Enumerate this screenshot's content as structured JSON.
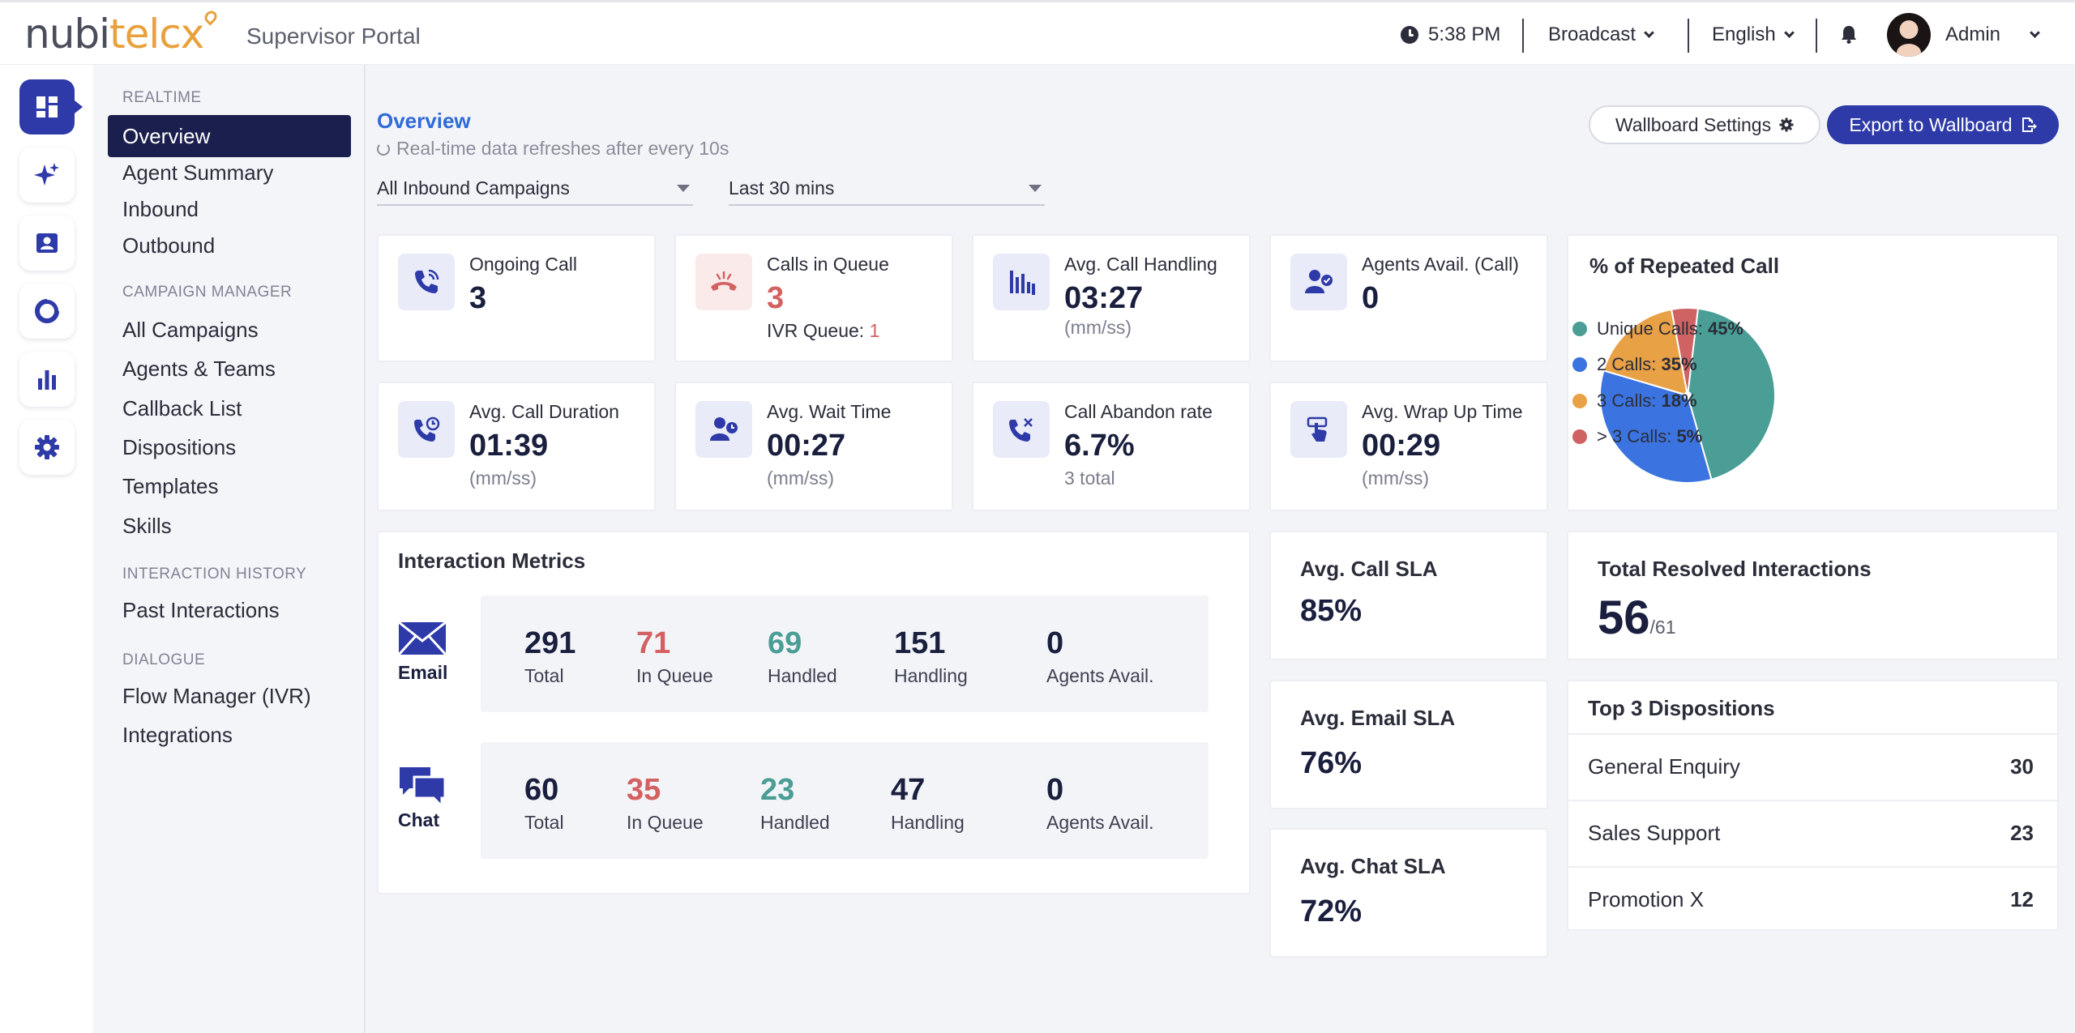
{
  "header": {
    "logo_text": "nubitelcx",
    "portal_title": "Supervisor Portal",
    "time": "5:38 PM",
    "broadcast_label": "Broadcast",
    "language_label": "English",
    "user_name": "Admin"
  },
  "nav": {
    "sections": [
      {
        "title": "REALTIME",
        "items": [
          "Overview",
          "Agent Summary",
          "Inbound",
          "Outbound"
        ]
      },
      {
        "title": "CAMPAIGN MANAGER",
        "items": [
          "All Campaigns",
          "Agents & Teams",
          "Callback List",
          "Dispositions",
          "Templates",
          "Skills"
        ]
      },
      {
        "title": "INTERACTION HISTORY",
        "items": [
          "Past Interactions"
        ]
      },
      {
        "title": "DIALOGUE",
        "items": [
          "Flow Manager (IVR)",
          "Integrations"
        ]
      }
    ],
    "active_item": "Overview"
  },
  "rail": [
    "dashboard-icon",
    "sparkle-icon",
    "contact-card-icon",
    "donut-icon",
    "bar-chart-icon",
    "gear-icon"
  ],
  "page": {
    "title": "Overview",
    "refresh_note": "Real-time data refreshes after every 10s",
    "campaign_filter": "All Inbound Campaigns",
    "time_filter": "Last 30 mins",
    "wallboard_settings_label": "Wallboard Settings",
    "export_label": "Export to Wallboard"
  },
  "kpis": {
    "ongoing_call": {
      "label": "Ongoing Call",
      "value": "3"
    },
    "calls_in_queue": {
      "label": "Calls in Queue",
      "value": "3",
      "sub_label": "IVR Queue: ",
      "sub_value": "1"
    },
    "avg_call_handling": {
      "label": "Avg. Call Handling",
      "value": "03:27",
      "unit": "(mm/ss)"
    },
    "agents_avail": {
      "label": "Agents Avail. (Call)",
      "value": "0"
    },
    "avg_call_duration": {
      "label": "Avg. Call Duration",
      "value": "01:39",
      "unit": "(mm/ss)"
    },
    "avg_wait_time": {
      "label": "Avg. Wait Time",
      "value": "00:27",
      "unit": "(mm/ss)"
    },
    "call_abandon_rate": {
      "label": "Call Abandon rate",
      "value": "6.7%",
      "sub": "3 total"
    },
    "avg_wrap_up_time": {
      "label": "Avg. Wrap Up Time",
      "value": "00:29",
      "unit": "(mm/ss)"
    }
  },
  "repeated_call": {
    "title": "% of Repeated Call",
    "legend": [
      {
        "label": "Unique Calls: ",
        "value": "45%",
        "color": "#4a9e95"
      },
      {
        "label": "2 Calls: ",
        "value": "35%",
        "color": "#3b74e0"
      },
      {
        "label": "3 Calls: ",
        "value": "18%",
        "color": "#e8a145"
      },
      {
        "label": "> 3 Calls: ",
        "value": "5%",
        "color": "#cf6262"
      }
    ]
  },
  "chart_data": {
    "type": "pie",
    "title": "% of Repeated Call",
    "categories": [
      "Unique Calls",
      "2 Calls",
      "3 Calls",
      "> 3 Calls"
    ],
    "values": [
      45,
      35,
      18,
      5
    ],
    "colors": [
      "#4a9e95",
      "#3b74e0",
      "#e8a145",
      "#cf6262"
    ],
    "legend": "right"
  },
  "interaction_metrics": {
    "title": "Interaction Metrics",
    "channels": [
      {
        "name": "Email",
        "metrics": [
          {
            "value": "291",
            "label": "Total"
          },
          {
            "value": "71",
            "label": "In Queue"
          },
          {
            "value": "69",
            "label": "Handled"
          },
          {
            "value": "151",
            "label": "Handling"
          },
          {
            "value": "0",
            "label": "Agents Avail."
          }
        ]
      },
      {
        "name": "Chat",
        "metrics": [
          {
            "value": "60",
            "label": "Total"
          },
          {
            "value": "35",
            "label": "In Queue"
          },
          {
            "value": "23",
            "label": "Handled"
          },
          {
            "value": "47",
            "label": "Handling"
          },
          {
            "value": "0",
            "label": "Agents Avail."
          }
        ]
      }
    ]
  },
  "sla": {
    "call": {
      "label": "Avg. Call SLA",
      "value": "85%"
    },
    "email": {
      "label": "Avg. Email SLA",
      "value": "76%"
    },
    "chat": {
      "label": "Avg. Chat SLA",
      "value": "72%"
    }
  },
  "resolved": {
    "title": "Total Resolved Interactions",
    "value": "56",
    "total": "/61"
  },
  "dispositions": {
    "title": "Top 3 Dispositions",
    "items": [
      {
        "name": "General Enquiry",
        "count": "30"
      },
      {
        "name": "Sales Support",
        "count": "23"
      },
      {
        "name": "Promotion X",
        "count": "12"
      }
    ]
  },
  "colors": {
    "primary": "#2d3aa8",
    "nav_active": "#1a1f4e",
    "accent_red": "#d36161",
    "accent_teal": "#4a9e95",
    "link_blue": "#2f6ad8",
    "logo_orange": "#e8a13c"
  }
}
